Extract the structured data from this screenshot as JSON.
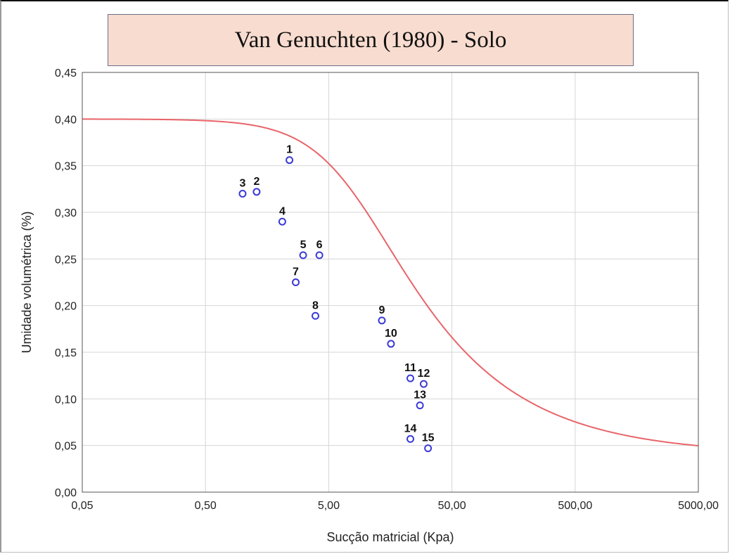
{
  "chart_data": {
    "type": "scatter",
    "title": "Van Genuchten (1980) - Solo",
    "xlabel": "Sucção matricial (Kpa)",
    "ylabel": "Umidade volumétrica (%)",
    "x_scale": "log",
    "xlim": [
      0.05,
      5000
    ],
    "ylim": [
      0,
      0.45
    ],
    "x_ticks": [
      0.05,
      0.5,
      5,
      50,
      500,
      5000
    ],
    "x_tick_labels": [
      "0,05",
      "0,50",
      "5,00",
      "50,00",
      "500,00",
      "5000,00"
    ],
    "y_ticks": [
      0,
      0.05,
      0.1,
      0.15,
      0.2,
      0.25,
      0.3,
      0.35,
      0.4,
      0.45
    ],
    "y_tick_labels": [
      "0,00",
      "0,05",
      "0,10",
      "0,15",
      "0,20",
      "0,25",
      "0,30",
      "0,35",
      "0,40",
      "0,45"
    ],
    "grid": true,
    "colors": {
      "points": "#3a3ad6",
      "curve": "#e8646a"
    },
    "points": [
      {
        "label": "1",
        "x": 2.4,
        "y": 0.356
      },
      {
        "label": "2",
        "x": 1.3,
        "y": 0.322
      },
      {
        "label": "3",
        "x": 1.0,
        "y": 0.32
      },
      {
        "label": "4",
        "x": 2.1,
        "y": 0.29
      },
      {
        "label": "5",
        "x": 3.1,
        "y": 0.254
      },
      {
        "label": "6",
        "x": 4.2,
        "y": 0.254
      },
      {
        "label": "7",
        "x": 2.7,
        "y": 0.225
      },
      {
        "label": "8",
        "x": 3.9,
        "y": 0.189
      },
      {
        "label": "9",
        "x": 13.5,
        "y": 0.184
      },
      {
        "label": "10",
        "x": 16.0,
        "y": 0.159
      },
      {
        "label": "11",
        "x": 23.0,
        "y": 0.122
      },
      {
        "label": "12",
        "x": 29.5,
        "y": 0.116
      },
      {
        "label": "13",
        "x": 27.5,
        "y": 0.093
      },
      {
        "label": "14",
        "x": 23.0,
        "y": 0.057
      },
      {
        "label": "15",
        "x": 32.0,
        "y": 0.047
      }
    ],
    "fit_curve": {
      "model": "van Genuchten",
      "theta_r": 0.04,
      "theta_s": 0.4,
      "alpha": 0.126,
      "n": 1.56
    }
  }
}
